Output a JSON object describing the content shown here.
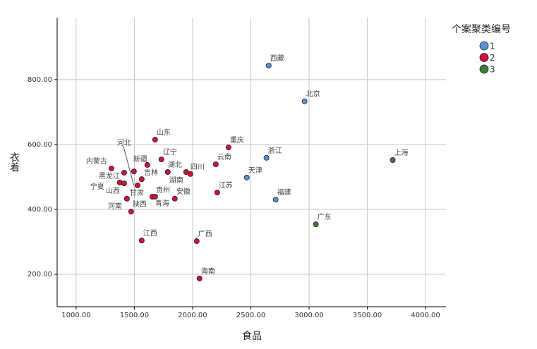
{
  "chart_data": {
    "type": "scatter",
    "x_label": "食品",
    "y_label": "衣着",
    "legend_title": "个案聚类编号",
    "xlim": [
      837,
      4175
    ],
    "ylim": [
      100,
      991
    ],
    "xticks": [
      {
        "value": 1000,
        "label": "1000.00"
      },
      {
        "value": 1500,
        "label": "1500.00"
      },
      {
        "value": 2000,
        "label": "2000.00"
      },
      {
        "value": 2500,
        "label": "2500.00"
      },
      {
        "value": 3000,
        "label": "3000.00"
      },
      {
        "value": 3500,
        "label": "3500.00"
      },
      {
        "value": 4000,
        "label": "4000.00"
      }
    ],
    "yticks": [
      {
        "value": 200,
        "label": "200.00"
      },
      {
        "value": 400,
        "label": "400.00"
      },
      {
        "value": 600,
        "label": "600.00"
      },
      {
        "value": 800,
        "label": "800.00"
      }
    ],
    "grid": true,
    "series": [
      {
        "name": "1",
        "color": "#5b8fd6",
        "labels": [
          "西藏",
          "北京",
          "浙江",
          "天津",
          "福建"
        ],
        "x": [
          2653,
          2961,
          2634,
          2465,
          2713
        ],
        "values": [
          843,
          733,
          559,
          498,
          430
        ]
      },
      {
        "name": "2",
        "color": "#d0103a",
        "labels": [
          "山东",
          "重庆",
          "辽宁",
          "云南",
          "内蒙古",
          "新疆",
          "河北",
          "黑龙江",
          "吉林",
          "宁夏",
          "山西",
          "甘肃",
          "河南",
          "陕西",
          "贵州",
          "青海",
          "安徽",
          "湖北",
          "湖南",
          "四川",
          "江苏",
          "江西",
          "广西",
          "海南"
        ],
        "x": [
          1678,
          2308,
          1732,
          2199,
          1303,
          1611,
          1496,
          1412,
          1563,
          1375,
          1412,
          1527,
          1436,
          1472,
          1654,
          1678,
          1847,
          1787,
          1944,
          1981,
          2211,
          1563,
          2035,
          2059
        ],
        "values": [
          615,
          591,
          554,
          539,
          526,
          537,
          517,
          513,
          493,
          483,
          480,
          474,
          433,
          393,
          439,
          439,
          433,
          515,
          515,
          509,
          452,
          304,
          302,
          187
        ]
      },
      {
        "name": "3",
        "color": "#3a7a35",
        "labels": [
          "上海",
          "广东"
        ],
        "x": [
          3718,
          3058
        ],
        "values": [
          552,
          354
        ]
      }
    ]
  }
}
